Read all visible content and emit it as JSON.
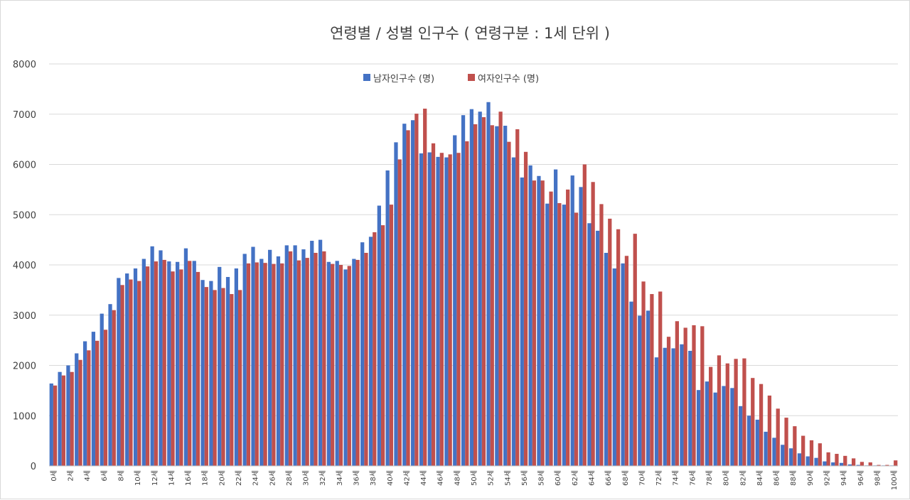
{
  "chart_data": {
    "type": "bar",
    "title": "연령별  / 성별 인구수 ( 연령구분 : 1세 단위 )",
    "ylim": [
      0,
      8000
    ],
    "yticks": [
      0,
      1000,
      2000,
      3000,
      4000,
      5000,
      6000,
      7000,
      8000
    ],
    "grid": true,
    "legend_position": "top",
    "categories": [
      "0세",
      "1세",
      "2세",
      "3세",
      "4세",
      "5세",
      "6세",
      "7세",
      "8세",
      "9세",
      "10세",
      "11세",
      "12세",
      "13세",
      "14세",
      "15세",
      "16세",
      "17세",
      "18세",
      "19세",
      "20세",
      "21세",
      "22세",
      "23세",
      "24세",
      "25세",
      "26세",
      "27세",
      "28세",
      "29세",
      "30세",
      "31세",
      "32세",
      "33세",
      "34세",
      "35세",
      "36세",
      "37세",
      "38세",
      "39세",
      "40세",
      "41세",
      "42세",
      "43세",
      "44세",
      "45세",
      "46세",
      "47세",
      "48세",
      "49세",
      "50세",
      "51세",
      "52세",
      "53세",
      "54세",
      "55세",
      "56세",
      "57세",
      "58세",
      "59세",
      "60세",
      "61세",
      "62세",
      "63세",
      "64세",
      "65세",
      "66세",
      "67세",
      "68세",
      "69세",
      "70세",
      "71세",
      "72세",
      "73세",
      "74세",
      "75세",
      "76세",
      "77세",
      "78세",
      "79세",
      "80세",
      "81세",
      "82세",
      "83세",
      "84세",
      "85세",
      "86세",
      "87세",
      "88세",
      "89세",
      "90세",
      "91세",
      "92세",
      "93세",
      "94세",
      "95세",
      "96세",
      "97세",
      "98세",
      "99세",
      "100세"
    ],
    "shown_tick_labels": [
      "0세",
      "2세",
      "4세",
      "6세",
      "8세",
      "10세",
      "12세",
      "14세",
      "16세",
      "18세",
      "20세",
      "22세",
      "24세",
      "26세",
      "28세",
      "30세",
      "32세",
      "34세",
      "36세",
      "38세",
      "40세",
      "42세",
      "44세",
      "46세",
      "48세",
      "50세",
      "52세",
      "54세",
      "56세",
      "58세",
      "60세",
      "62세",
      "64세",
      "66세",
      "68세",
      "70세",
      "72세",
      "74세",
      "76세",
      "78세",
      "80세",
      "82세",
      "84세",
      "86세",
      "88세",
      "90세",
      "92세",
      "94세",
      "96세",
      "98세",
      "100세"
    ],
    "series": [
      {
        "name": "남자인구수 (명)",
        "color": "#4472c4",
        "values": [
          1640,
          1870,
          2000,
          2240,
          2480,
          2670,
          3030,
          3220,
          3740,
          3830,
          3930,
          4120,
          4370,
          4290,
          4070,
          4060,
          4330,
          4080,
          3700,
          3680,
          3960,
          3760,
          3930,
          4220,
          4360,
          4120,
          4300,
          4170,
          4390,
          4390,
          4310,
          4480,
          4500,
          4060,
          4080,
          3910,
          4120,
          4450,
          4560,
          5180,
          5880,
          6440,
          6810,
          6880,
          6220,
          6240,
          6150,
          6140,
          6580,
          6980,
          7100,
          7050,
          7240,
          6760,
          6770,
          6140,
          5740,
          5980,
          5770,
          5220,
          5900,
          5200,
          5780,
          5550,
          4830,
          4680,
          4240,
          3930,
          4030,
          3270,
          2990,
          3090,
          2160,
          2350,
          2340,
          2420,
          2290,
          1510,
          1680,
          1460,
          1590,
          1550,
          1190,
          1000,
          920,
          680,
          560,
          420,
          350,
          250,
          190,
          160,
          90,
          70,
          60,
          30,
          20,
          10,
          10,
          10,
          10
        ]
      },
      {
        "name": "여자인구수 (명)",
        "color": "#c0504d",
        "values": [
          1600,
          1800,
          1870,
          2110,
          2300,
          2490,
          2710,
          3100,
          3600,
          3710,
          3680,
          3970,
          4070,
          4100,
          3870,
          3910,
          4080,
          3860,
          3560,
          3500,
          3540,
          3420,
          3500,
          4030,
          4050,
          4040,
          4020,
          4030,
          4270,
          4090,
          4140,
          4240,
          4270,
          4020,
          4000,
          3980,
          4100,
          4240,
          4650,
          4790,
          5200,
          6100,
          6680,
          7010,
          7110,
          6420,
          6230,
          6200,
          6230,
          6460,
          6800,
          6940,
          6780,
          7050,
          6450,
          6700,
          6250,
          5680,
          5680,
          5460,
          5230,
          5500,
          5040,
          6000,
          5650,
          5210,
          4920,
          4710,
          4180,
          4620,
          3670,
          3420,
          3470,
          2570,
          2880,
          2750,
          2800,
          2780,
          1970,
          2200,
          2040,
          2130,
          2140,
          1750,
          1630,
          1400,
          1140,
          960,
          790,
          600,
          510,
          450,
          270,
          240,
          200,
          150,
          80,
          70,
          20,
          20,
          110
        ]
      }
    ]
  }
}
